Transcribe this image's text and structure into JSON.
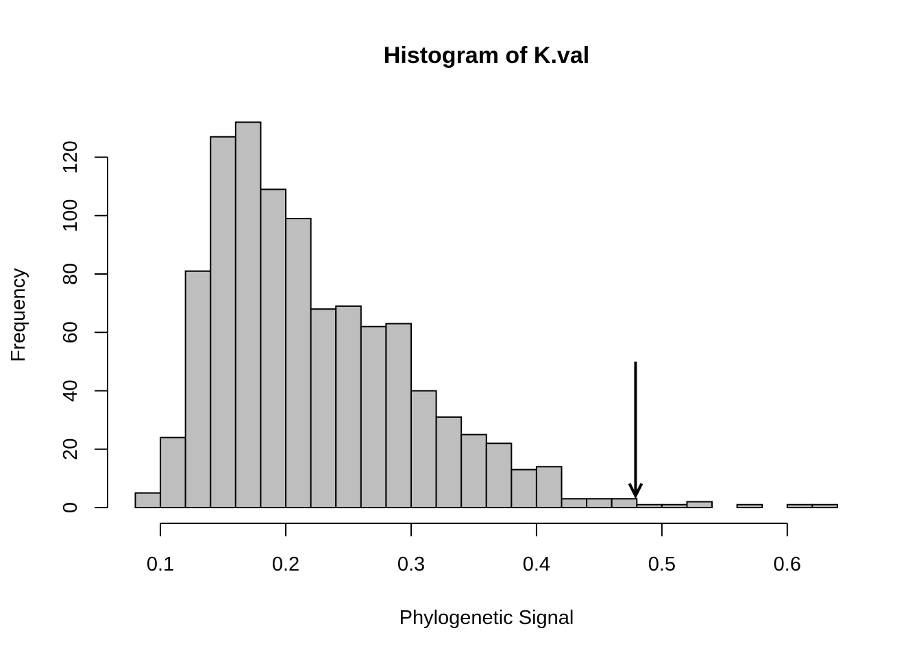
{
  "chart_data": {
    "type": "bar",
    "title": "Histogram of K.val",
    "xlabel": "Phylogenetic Signal",
    "ylabel": "Frequency",
    "bin_width": 0.02,
    "bins": [
      {
        "x0": 0.08,
        "x1": 0.1,
        "count": 5
      },
      {
        "x0": 0.1,
        "x1": 0.12,
        "count": 24
      },
      {
        "x0": 0.12,
        "x1": 0.14,
        "count": 81
      },
      {
        "x0": 0.14,
        "x1": 0.16,
        "count": 127
      },
      {
        "x0": 0.16,
        "x1": 0.18,
        "count": 132
      },
      {
        "x0": 0.18,
        "x1": 0.2,
        "count": 109
      },
      {
        "x0": 0.2,
        "x1": 0.22,
        "count": 99
      },
      {
        "x0": 0.22,
        "x1": 0.24,
        "count": 68
      },
      {
        "x0": 0.24,
        "x1": 0.26,
        "count": 69
      },
      {
        "x0": 0.26,
        "x1": 0.28,
        "count": 62
      },
      {
        "x0": 0.28,
        "x1": 0.3,
        "count": 63
      },
      {
        "x0": 0.3,
        "x1": 0.32,
        "count": 40
      },
      {
        "x0": 0.32,
        "x1": 0.34,
        "count": 31
      },
      {
        "x0": 0.34,
        "x1": 0.36,
        "count": 25
      },
      {
        "x0": 0.36,
        "x1": 0.38,
        "count": 22
      },
      {
        "x0": 0.38,
        "x1": 0.4,
        "count": 13
      },
      {
        "x0": 0.4,
        "x1": 0.42,
        "count": 14
      },
      {
        "x0": 0.42,
        "x1": 0.44,
        "count": 3
      },
      {
        "x0": 0.44,
        "x1": 0.46,
        "count": 3
      },
      {
        "x0": 0.46,
        "x1": 0.48,
        "count": 3
      },
      {
        "x0": 0.48,
        "x1": 0.5,
        "count": 1
      },
      {
        "x0": 0.5,
        "x1": 0.52,
        "count": 1
      },
      {
        "x0": 0.52,
        "x1": 0.54,
        "count": 2
      },
      {
        "x0": 0.54,
        "x1": 0.56,
        "count": 0
      },
      {
        "x0": 0.56,
        "x1": 0.58,
        "count": 1
      },
      {
        "x0": 0.58,
        "x1": 0.6,
        "count": 0
      },
      {
        "x0": 0.6,
        "x1": 0.62,
        "count": 1
      },
      {
        "x0": 0.62,
        "x1": 0.64,
        "count": 1
      }
    ],
    "xticks": [
      0.1,
      0.2,
      0.3,
      0.4,
      0.5,
      0.6
    ],
    "xtick_labels": [
      "0.1",
      "0.2",
      "0.3",
      "0.4",
      "0.5",
      "0.6"
    ],
    "yticks": [
      0,
      20,
      40,
      60,
      80,
      100,
      120
    ],
    "ytick_labels": [
      "0",
      "20",
      "40",
      "60",
      "80",
      "100",
      "120"
    ],
    "xlim": [
      0.08,
      0.64
    ],
    "ylim": [
      0,
      132
    ],
    "bar_color": "#bebebe",
    "annotation": {
      "type": "arrow",
      "x": 0.479,
      "y_start": 50,
      "y_end": 4
    }
  }
}
